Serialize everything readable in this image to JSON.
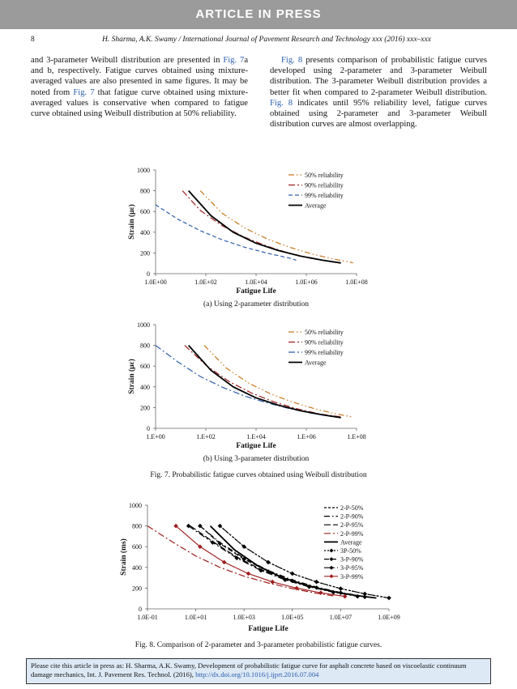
{
  "banner": "ARTICLE IN PRESS",
  "header": {
    "page_number": "8",
    "running_title": "H. Sharma, A.K. Swamy / International Journal of Pavement Research and Technology xxx (2016) xxx–xxx"
  },
  "body": {
    "left_col": {
      "p1": "and 3-parameter Weibull distribution are presented in ",
      "link1": "Fig. 7",
      "p2": "a and b, respectively. Fatigue curves obtained using mixture-averaged values are also presented in same figures. It may be noted from ",
      "link2": "Fig. 7",
      "p3": " that fatigue curve obtained using mixture-averaged values is conservative when compared to fatigue curve obtained using Weibull distribution at 50% reliability."
    },
    "right_col": {
      "link1": "Fig. 8",
      "p1": " presents comparison of probabilistic fatigue curves developed using 2-parameter and 3-parameter Weibull distribution. The 3-parameter Weibull distribution provides a better fit when compared to 2-parameter Weibull distribution. ",
      "link2": "Fig. 8",
      "p2": " indicates until 95% reliability level, fatigue curves obtained using 2-parameter and 3-parameter Weibull distribution curves are almost overlapping."
    }
  },
  "chart_data": [
    {
      "type": "line",
      "title": "(a) Using 2-parameter distribution",
      "xlabel": "Fatigue Life",
      "ylabel": "Strain (με)",
      "x_scale": "log",
      "xlim": [
        1,
        1000000000.0
      ],
      "ylim": [
        0,
        1000
      ],
      "x_ticks": [
        "1.0E+00",
        "1.0E+02",
        "1.0E+04",
        "1.0E+06",
        "1.0E+08"
      ],
      "y_ticks": [
        "0",
        "200",
        "400",
        "600",
        "800",
        "1000"
      ],
      "legend": "top-right",
      "series": [
        {
          "name": "50% reliability",
          "color": "#c8771e",
          "dash": "7,3,1.5,3,1.5,3",
          "points": [
            [
              100,
              800
            ],
            [
              1000,
              580
            ],
            [
              10000,
              440
            ],
            [
              100000,
              335
            ],
            [
              1000000,
              255
            ],
            [
              10000000,
              190
            ],
            [
              100000000,
              140
            ],
            [
              700000000,
              105
            ]
          ]
        },
        {
          "name": "90% reliability",
          "color": "#9e1e1e",
          "dash": "8,3,2,3",
          "points": [
            [
              16,
              800
            ],
            [
              100,
              610
            ],
            [
              1000,
              460
            ],
            [
              10000,
              350
            ],
            [
              100000,
              265
            ],
            [
              1000000,
              195
            ],
            [
              10000000,
              145
            ],
            [
              100000000,
              110
            ]
          ]
        },
        {
          "name": "99% reliability",
          "color": "#2f5fa8",
          "dash": "5,3",
          "points": [
            [
              1,
              665
            ],
            [
              10,
              525
            ],
            [
              100,
              415
            ],
            [
              1000,
              325
            ],
            [
              10000,
              255
            ],
            [
              100000,
              198
            ],
            [
              1000000,
              150
            ],
            [
              2000000,
              130
            ]
          ]
        },
        {
          "name": "Average",
          "color": "#000",
          "dash": "",
          "width": 1.8,
          "points": [
            [
              30,
              800
            ],
            [
              300,
              560
            ],
            [
              3000,
              400
            ],
            [
              30000,
              295
            ],
            [
              300000,
              225
            ],
            [
              3000000,
              170
            ],
            [
              30000000,
              130
            ],
            [
              200000000,
              103
            ]
          ]
        }
      ]
    },
    {
      "type": "line",
      "title": "(b) Using 3-parameter distribution",
      "xlabel": "Fatigue Life",
      "ylabel": "Strain (με)",
      "x_scale": "log",
      "xlim": [
        1,
        1000000000.0
      ],
      "ylim": [
        0,
        1000
      ],
      "x_ticks": [
        "1.E+00",
        "1.E+02",
        "1.E+04",
        "1.E+06",
        "1.E+08"
      ],
      "y_ticks": [
        "0",
        "200",
        "400",
        "600",
        "800",
        "1000"
      ],
      "legend": "top-right",
      "series": [
        {
          "name": "50% reliability",
          "color": "#c8771e",
          "dash": "7,3,1.5,3,1.5,3",
          "points": [
            [
              150,
              800
            ],
            [
              1500,
              580
            ],
            [
              15000,
              435
            ],
            [
              150000,
              330
            ],
            [
              1500000,
              250
            ],
            [
              15000000,
              185
            ],
            [
              150000000,
              135
            ],
            [
              700000000,
              108
            ]
          ]
        },
        {
          "name": "90% reliability",
          "color": "#9e1e1e",
          "dash": "8,3,2,3",
          "points": [
            [
              20,
              800
            ],
            [
              200,
              600
            ],
            [
              2000,
              450
            ],
            [
              20000,
              340
            ],
            [
              200000,
              255
            ],
            [
              2000000,
              190
            ],
            [
              20000000,
              140
            ],
            [
              200000000,
              110
            ]
          ]
        },
        {
          "name": "99% reliability",
          "color": "#2f5fa8",
          "dash": "8,3,2,3",
          "points": [
            [
              1,
              800
            ],
            [
              10,
              640
            ],
            [
              100,
              500
            ],
            [
              1000,
              395
            ],
            [
              10000,
              310
            ],
            [
              100000,
              245
            ],
            [
              1000000,
              190
            ],
            [
              10000000,
              145
            ],
            [
              100000000,
              110
            ]
          ]
        },
        {
          "name": "Average",
          "color": "#000",
          "dash": "",
          "width": 1.8,
          "points": [
            [
              30,
              800
            ],
            [
              300,
              560
            ],
            [
              3000,
              400
            ],
            [
              30000,
              295
            ],
            [
              300000,
              225
            ],
            [
              3000000,
              170
            ],
            [
              30000000,
              130
            ],
            [
              200000000,
              103
            ]
          ]
        }
      ]
    },
    {
      "type": "line",
      "title": "",
      "xlabel": "Fatigue Life",
      "ylabel": "Strain (ms)",
      "x_scale": "log",
      "xlim": [
        0.1,
        1000000000.0
      ],
      "ylim": [
        0,
        1000
      ],
      "x_ticks": [
        "1.0E-01",
        "1.0E+01",
        "1.0E+03",
        "1.0E+05",
        "1.0E+07",
        "1.0E+09"
      ],
      "y_ticks": [
        "0",
        "200",
        "400",
        "600",
        "800",
        "1000"
      ],
      "legend": "top-right",
      "series": [
        {
          "name": "2-P-50%",
          "color": "#000",
          "dash": "3,2",
          "points": [
            [
              100,
              800
            ],
            [
              1000,
              600
            ],
            [
              10000,
              450
            ],
            [
              100000,
              340
            ],
            [
              1000000,
              260
            ],
            [
              10000000,
              195
            ],
            [
              100000000,
              145
            ],
            [
              1000000000,
              105
            ]
          ]
        },
        {
          "name": "2-P-90%",
          "color": "#000",
          "dash": "7,3,1.5,3",
          "points": [
            [
              15,
              800
            ],
            [
              100,
              640
            ],
            [
              1000,
              490
            ],
            [
              10000,
              370
            ],
            [
              100000,
              280
            ],
            [
              1000000,
              210
            ],
            [
              10000000,
              158
            ],
            [
              100000000,
              118
            ]
          ]
        },
        {
          "name": "2-P-95%",
          "color": "#000",
          "dash": "8,3",
          "points": [
            [
              6,
              800
            ],
            [
              50,
              650
            ],
            [
              500,
              500
            ],
            [
              5000,
              380
            ],
            [
              50000,
              290
            ],
            [
              500000,
              220
            ],
            [
              5000000,
              165
            ],
            [
              50000000,
              125
            ]
          ]
        },
        {
          "name": "2-P-99%",
          "color": "#9e1e1e",
          "dash": "8,3,2,3",
          "points": [
            [
              0.1,
              800
            ],
            [
              1,
              650
            ],
            [
              10,
              510
            ],
            [
              100,
              400
            ],
            [
              1000,
              315
            ],
            [
              10000,
              250
            ],
            [
              100000,
              195
            ],
            [
              1000000,
              150
            ],
            [
              5000000,
              125
            ]
          ]
        },
        {
          "name": "Average",
          "color": "#000",
          "dash": "",
          "width": 1.8,
          "points": [
            [
              40,
              800
            ],
            [
              400,
              570
            ],
            [
              4000,
              410
            ],
            [
              40000,
              300
            ],
            [
              400000,
              225
            ],
            [
              4000000,
              170
            ],
            [
              40000000,
              130
            ],
            [
              300000000,
              105
            ]
          ]
        },
        {
          "name": "3P-50%",
          "color": "#000",
          "dash": "2,2",
          "marker": "diamond",
          "points": [
            [
              100,
              800
            ],
            [
              1000,
              600
            ],
            [
              10000,
              450
            ],
            [
              100000,
              340
            ],
            [
              1000000,
              260
            ],
            [
              10000000,
              195
            ],
            [
              100000000,
              145
            ],
            [
              1000000000,
              105
            ]
          ]
        },
        {
          "name": "3-P-90%",
          "color": "#000",
          "dash": "6,3",
          "marker": "diamond",
          "points": [
            [
              15,
              800
            ],
            [
              100,
              630
            ],
            [
              1000,
              480
            ],
            [
              10000,
              360
            ],
            [
              100000,
              270
            ],
            [
              1000000,
              205
            ],
            [
              10000000,
              155
            ],
            [
              100000000,
              115
            ]
          ]
        },
        {
          "name": "3-P-95%",
          "color": "#000",
          "dash": "8,3,2,3",
          "marker": "diamond",
          "points": [
            [
              5,
              800
            ],
            [
              50,
              640
            ],
            [
              500,
              490
            ],
            [
              5000,
              370
            ],
            [
              50000,
              280
            ],
            [
              500000,
              212
            ],
            [
              5000000,
              160
            ],
            [
              50000000,
              120
            ]
          ]
        },
        {
          "name": "3-P-99%",
          "color": "#9e1e1e",
          "dash": "",
          "marker": "diamond",
          "points": [
            [
              1.5,
              800
            ],
            [
              15,
              600
            ],
            [
              150,
              450
            ],
            [
              1500,
              340
            ],
            [
              15000,
              260
            ],
            [
              150000,
              200
            ],
            [
              1500000,
              155
            ],
            [
              15000000,
              120
            ]
          ]
        }
      ]
    }
  ],
  "captions": {
    "fig7": "Fig. 7.  Probabilistic fatigue curves obtained using Weibull distribution",
    "fig8": "Fig. 8.  Comparison of 2-parameter and 3-parameter probabilistic fatigue curves."
  },
  "citation": {
    "text": "Please cite this article in press as: H. Sharma, A.K. Swamy, Development of probabilistic fatigue curve for asphalt concrete based on viscoelastic continuum damage mechanics, Int. J. Pavement Res. Technol. (2016), ",
    "doi": "http://dx.doi.org/10.1016/j.ijprt.2016.07.004"
  }
}
